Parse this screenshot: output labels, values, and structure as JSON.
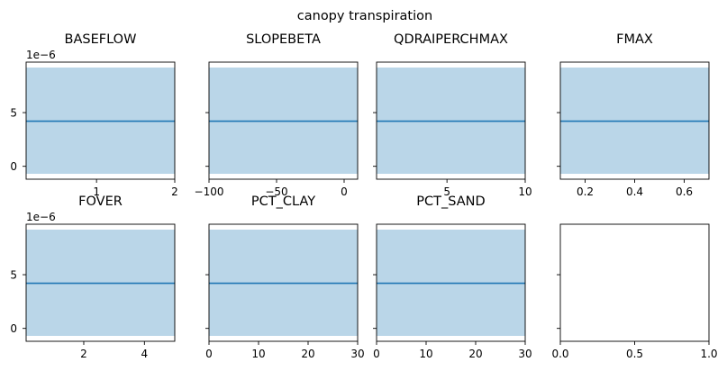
{
  "figure_title": "canopy transpiration",
  "colors": {
    "band": "#bad6e8",
    "line": "#1f77b4",
    "axis": "#000000",
    "background": "#ffffff"
  },
  "chart_data": [
    {
      "type": "area",
      "title": "BASEFLOW",
      "x": [
        0.1,
        2.0
      ],
      "y": [
        4.2,
        4.2
      ],
      "band": [
        [
          -0.7,
          9.2
        ],
        [
          -0.7,
          9.2
        ]
      ],
      "xlim": [
        0.1,
        2.0
      ],
      "ylim": [
        -1.2,
        9.7
      ],
      "y_exponent": "1e−6",
      "xticks": [
        1,
        2
      ],
      "xtick_labels": [
        "1",
        "2"
      ],
      "yticks": [
        0,
        5
      ],
      "ytick_labels": [
        "0",
        "5"
      ],
      "show_ytick_labels": true
    },
    {
      "type": "area",
      "title": "SLOPEBETA",
      "x": [
        -100,
        10
      ],
      "y": [
        4.2,
        4.2
      ],
      "band": [
        [
          -0.7,
          9.2
        ],
        [
          -0.7,
          9.2
        ]
      ],
      "xlim": [
        -100,
        10
      ],
      "ylim": [
        -1.2,
        9.7
      ],
      "xticks": [
        -100,
        -50,
        0
      ],
      "xtick_labels": [
        "−100",
        "−50",
        "0"
      ],
      "yticks": [
        0,
        5
      ],
      "ytick_labels": [
        "0",
        "5"
      ],
      "show_ytick_labels": false
    },
    {
      "type": "area",
      "title": "QDRAIPERCHMAX",
      "x": [
        0.5,
        10
      ],
      "y": [
        4.2,
        4.2
      ],
      "band": [
        [
          -0.7,
          9.2
        ],
        [
          -0.7,
          9.2
        ]
      ],
      "xlim": [
        0.5,
        10
      ],
      "ylim": [
        -1.2,
        9.7
      ],
      "xticks": [
        5,
        10
      ],
      "xtick_labels": [
        "5",
        "10"
      ],
      "yticks": [
        0,
        5
      ],
      "ytick_labels": [
        "0",
        "5"
      ],
      "show_ytick_labels": false
    },
    {
      "type": "area",
      "title": "FMAX",
      "x": [
        0.1,
        0.7
      ],
      "y": [
        4.2,
        4.2
      ],
      "band": [
        [
          -0.7,
          9.2
        ],
        [
          -0.7,
          9.2
        ]
      ],
      "xlim": [
        0.1,
        0.7
      ],
      "ylim": [
        -1.2,
        9.7
      ],
      "xticks": [
        0.2,
        0.4,
        0.6
      ],
      "xtick_labels": [
        "0.2",
        "0.4",
        "0.6"
      ],
      "yticks": [
        0,
        5
      ],
      "ytick_labels": [
        "0",
        "5"
      ],
      "show_ytick_labels": false
    },
    {
      "type": "area",
      "title": "FOVER",
      "x": [
        0.1,
        5.0
      ],
      "y": [
        4.2,
        4.2
      ],
      "band": [
        [
          -0.7,
          9.2
        ],
        [
          -0.7,
          9.2
        ]
      ],
      "xlim": [
        0.1,
        5.0
      ],
      "ylim": [
        -1.2,
        9.7
      ],
      "y_exponent": "1e−6",
      "xticks": [
        2,
        4
      ],
      "xtick_labels": [
        "2",
        "4"
      ],
      "yticks": [
        0,
        5
      ],
      "ytick_labels": [
        "0",
        "5"
      ],
      "show_ytick_labels": true
    },
    {
      "type": "area",
      "title": "PCT_CLAY",
      "x": [
        0,
        30
      ],
      "y": [
        4.2,
        4.2
      ],
      "band": [
        [
          -0.7,
          9.2
        ],
        [
          -0.7,
          9.2
        ]
      ],
      "xlim": [
        0,
        30
      ],
      "ylim": [
        -1.2,
        9.7
      ],
      "xticks": [
        0,
        10,
        20,
        30
      ],
      "xtick_labels": [
        "0",
        "10",
        "20",
        "30"
      ],
      "yticks": [
        0,
        5
      ],
      "ytick_labels": [
        "0",
        "5"
      ],
      "show_ytick_labels": false
    },
    {
      "type": "area",
      "title": "PCT_SAND",
      "x": [
        0,
        30
      ],
      "y": [
        4.2,
        4.2
      ],
      "band": [
        [
          -0.7,
          9.2
        ],
        [
          -0.7,
          9.2
        ]
      ],
      "xlim": [
        0,
        30
      ],
      "ylim": [
        -1.2,
        9.7
      ],
      "xticks": [
        0,
        10,
        20,
        30
      ],
      "xtick_labels": [
        "0",
        "10",
        "20",
        "30"
      ],
      "yticks": [
        0,
        5
      ],
      "ytick_labels": [
        "0",
        "5"
      ],
      "show_ytick_labels": false
    },
    {
      "type": "empty",
      "title": "",
      "xlim": [
        0,
        1
      ],
      "ylim": [
        -1.2,
        9.7
      ],
      "xticks": [
        0,
        0.5,
        1
      ],
      "xtick_labels": [
        "0.0",
        "0.5",
        "1.0"
      ],
      "yticks": [
        0,
        5
      ],
      "ytick_labels": [
        "0",
        "5"
      ],
      "show_ytick_labels": false
    }
  ]
}
